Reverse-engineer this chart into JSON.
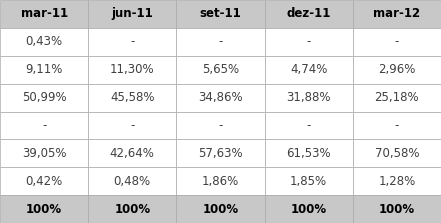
{
  "headers": [
    "mar-11",
    "jun-11",
    "set-11",
    "dez-11",
    "mar-12"
  ],
  "rows": [
    [
      "0,43%",
      "-",
      "-",
      "-",
      "-"
    ],
    [
      "9,11%",
      "11,30%",
      "5,65%",
      "4,74%",
      "2,96%"
    ],
    [
      "50,99%",
      "45,58%",
      "34,86%",
      "31,88%",
      "25,18%"
    ],
    [
      "-",
      "-",
      "-",
      "-",
      "-"
    ],
    [
      "39,05%",
      "42,64%",
      "57,63%",
      "61,53%",
      "70,58%"
    ],
    [
      "0,42%",
      "0,48%",
      "1,86%",
      "1,85%",
      "1,28%"
    ],
    [
      "100%",
      "100%",
      "100%",
      "100%",
      "100%"
    ]
  ],
  "header_bg": "#c8c8c8",
  "last_row_bg": "#c8c8c8",
  "normal_row_bg": "#ffffff",
  "header_text_color": "#000000",
  "body_text_color": "#404040",
  "last_row_text_color": "#000000",
  "border_color": "#aaaaaa",
  "header_fontsize": 8.5,
  "body_fontsize": 8.5
}
